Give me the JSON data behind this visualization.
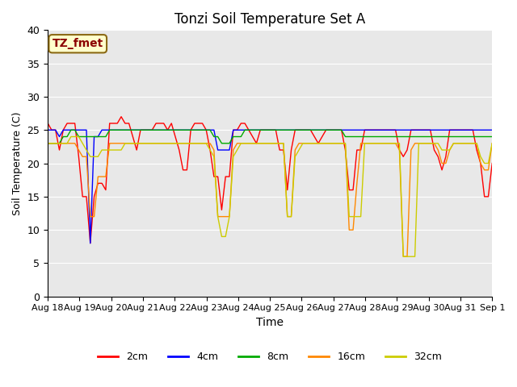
{
  "title": "Tonzi Soil Temperature Set A",
  "xlabel": "Time",
  "ylabel": "Soil Temperature (C)",
  "ylim": [
    0,
    40
  ],
  "yticks": [
    0,
    5,
    10,
    15,
    20,
    25,
    30,
    35,
    40
  ],
  "annotation_text": "TZ_fmet",
  "annotation_color": "#8B0000",
  "annotation_bg": "#FFFFCC",
  "annotation_border": "#8B6914",
  "series_colors": {
    "2cm": "#FF0000",
    "4cm": "#0000FF",
    "8cm": "#00AA00",
    "16cm": "#FF8800",
    "32cm": "#CCCC00"
  },
  "background_color": "#E8E8E8",
  "x_tick_labels": [
    "Aug 18",
    "Aug 19",
    "Aug 20",
    "Aug 21",
    "Aug 22",
    "Aug 23",
    "Aug 24",
    "Aug 25",
    "Aug 26",
    "Aug 27",
    "Aug 28",
    "Aug 29",
    "Aug 30",
    "Aug 31",
    "Sep 1"
  ],
  "legend_labels": [
    "2cm",
    "4cm",
    "8cm",
    "16cm",
    "32cm"
  ],
  "t_2cm": [
    26,
    25,
    25,
    22,
    25,
    26,
    26,
    26,
    21,
    15,
    15,
    8,
    15,
    17,
    17,
    16,
    26,
    26,
    26,
    27,
    26,
    26,
    24,
    22,
    25,
    25,
    25,
    25,
    26,
    26,
    26,
    25,
    26,
    24,
    22,
    19,
    19,
    25,
    26,
    26,
    26,
    25,
    22,
    18,
    18,
    13,
    18,
    18,
    25,
    25,
    26,
    26,
    25,
    24,
    23,
    25,
    25,
    25,
    25,
    25,
    22,
    22,
    16,
    22,
    25,
    25,
    25,
    25,
    25,
    24,
    23,
    24,
    25,
    25,
    25,
    25,
    25,
    22,
    16,
    16,
    22,
    22,
    25,
    25,
    25,
    25,
    25,
    25,
    25,
    25,
    25,
    22,
    21,
    22,
    25,
    25,
    25,
    25,
    25,
    25,
    22,
    21,
    19,
    21,
    25,
    25,
    25,
    25,
    25,
    25,
    25,
    22,
    20,
    15,
    15,
    20
  ],
  "t_4cm": [
    25,
    25,
    25,
    24,
    25,
    25,
    25,
    25,
    25,
    25,
    25,
    8,
    24,
    24,
    25,
    25,
    25,
    25,
    25,
    25,
    25,
    25,
    25,
    25,
    25,
    25,
    25,
    25,
    25,
    25,
    25,
    25,
    25,
    25,
    25,
    25,
    25,
    25,
    25,
    25,
    25,
    25,
    25,
    25,
    22,
    22,
    22,
    22,
    25,
    25,
    25,
    25,
    25,
    25,
    25,
    25,
    25,
    25,
    25,
    25,
    25,
    25,
    25,
    25,
    25,
    25,
    25,
    25,
    25,
    25,
    25,
    25,
    25,
    25,
    25,
    25,
    25,
    25,
    25,
    25,
    25,
    25,
    25,
    25,
    25,
    25,
    25,
    25,
    25,
    25,
    25,
    25,
    25,
    25,
    25,
    25,
    25,
    25,
    25,
    25,
    25,
    25,
    25,
    25,
    25,
    25,
    25,
    25,
    25,
    25,
    25,
    25,
    25,
    25,
    25,
    25
  ],
  "t_8cm": [
    23,
    23,
    23,
    23,
    24,
    24,
    25,
    25,
    24,
    24,
    24,
    24,
    24,
    24,
    24,
    24,
    25,
    25,
    25,
    25,
    25,
    25,
    25,
    25,
    25,
    25,
    25,
    25,
    25,
    25,
    25,
    25,
    25,
    25,
    25,
    25,
    25,
    25,
    25,
    25,
    25,
    25,
    25,
    24,
    24,
    23,
    23,
    23,
    24,
    24,
    24,
    25,
    25,
    25,
    25,
    25,
    25,
    25,
    25,
    25,
    25,
    25,
    25,
    25,
    25,
    25,
    25,
    25,
    25,
    25,
    25,
    25,
    25,
    25,
    25,
    25,
    25,
    24,
    24,
    24,
    24,
    24,
    24,
    24,
    24,
    24,
    24,
    24,
    24,
    24,
    24,
    24,
    24,
    24,
    24,
    24,
    24,
    24,
    24,
    24,
    24,
    24,
    24,
    24,
    24,
    24,
    24,
    24,
    24,
    24,
    24,
    24,
    24,
    24,
    24,
    24
  ],
  "t_16cm": [
    23,
    23,
    23,
    23,
    23,
    23,
    23,
    23,
    22,
    21,
    21,
    12,
    12,
    18,
    18,
    18,
    23,
    23,
    23,
    23,
    23,
    23,
    23,
    23,
    23,
    23,
    23,
    23,
    23,
    23,
    23,
    23,
    23,
    23,
    23,
    23,
    23,
    23,
    23,
    23,
    23,
    23,
    23,
    22,
    12,
    12,
    12,
    12,
    22,
    23,
    23,
    23,
    23,
    23,
    23,
    23,
    23,
    23,
    23,
    23,
    23,
    23,
    12,
    12,
    22,
    23,
    23,
    23,
    23,
    23,
    23,
    23,
    23,
    23,
    23,
    23,
    23,
    23,
    10,
    10,
    17,
    23,
    23,
    23,
    23,
    23,
    23,
    23,
    23,
    23,
    23,
    22,
    6,
    6,
    22,
    23,
    23,
    23,
    23,
    23,
    23,
    22,
    20,
    20,
    22,
    23,
    23,
    23,
    23,
    23,
    23,
    23,
    20,
    19,
    19,
    23
  ],
  "t_32cm": [
    23,
    23,
    23,
    23,
    23,
    23,
    24,
    24,
    24,
    23,
    22,
    21,
    21,
    21,
    22,
    22,
    22,
    22,
    22,
    22,
    23,
    23,
    23,
    23,
    23,
    23,
    23,
    23,
    23,
    23,
    23,
    23,
    23,
    23,
    23,
    23,
    23,
    23,
    23,
    23,
    23,
    23,
    22,
    21,
    12,
    9,
    9,
    12,
    21,
    22,
    23,
    23,
    23,
    23,
    23,
    23,
    23,
    23,
    23,
    23,
    23,
    23,
    12,
    12,
    21,
    22,
    23,
    23,
    23,
    23,
    23,
    23,
    23,
    23,
    23,
    23,
    23,
    23,
    12,
    12,
    12,
    12,
    23,
    23,
    23,
    23,
    23,
    23,
    23,
    23,
    23,
    23,
    6,
    6,
    6,
    6,
    23,
    23,
    23,
    23,
    23,
    23,
    22,
    22,
    22,
    23,
    23,
    23,
    23,
    23,
    23,
    23,
    21,
    20,
    20,
    23
  ]
}
